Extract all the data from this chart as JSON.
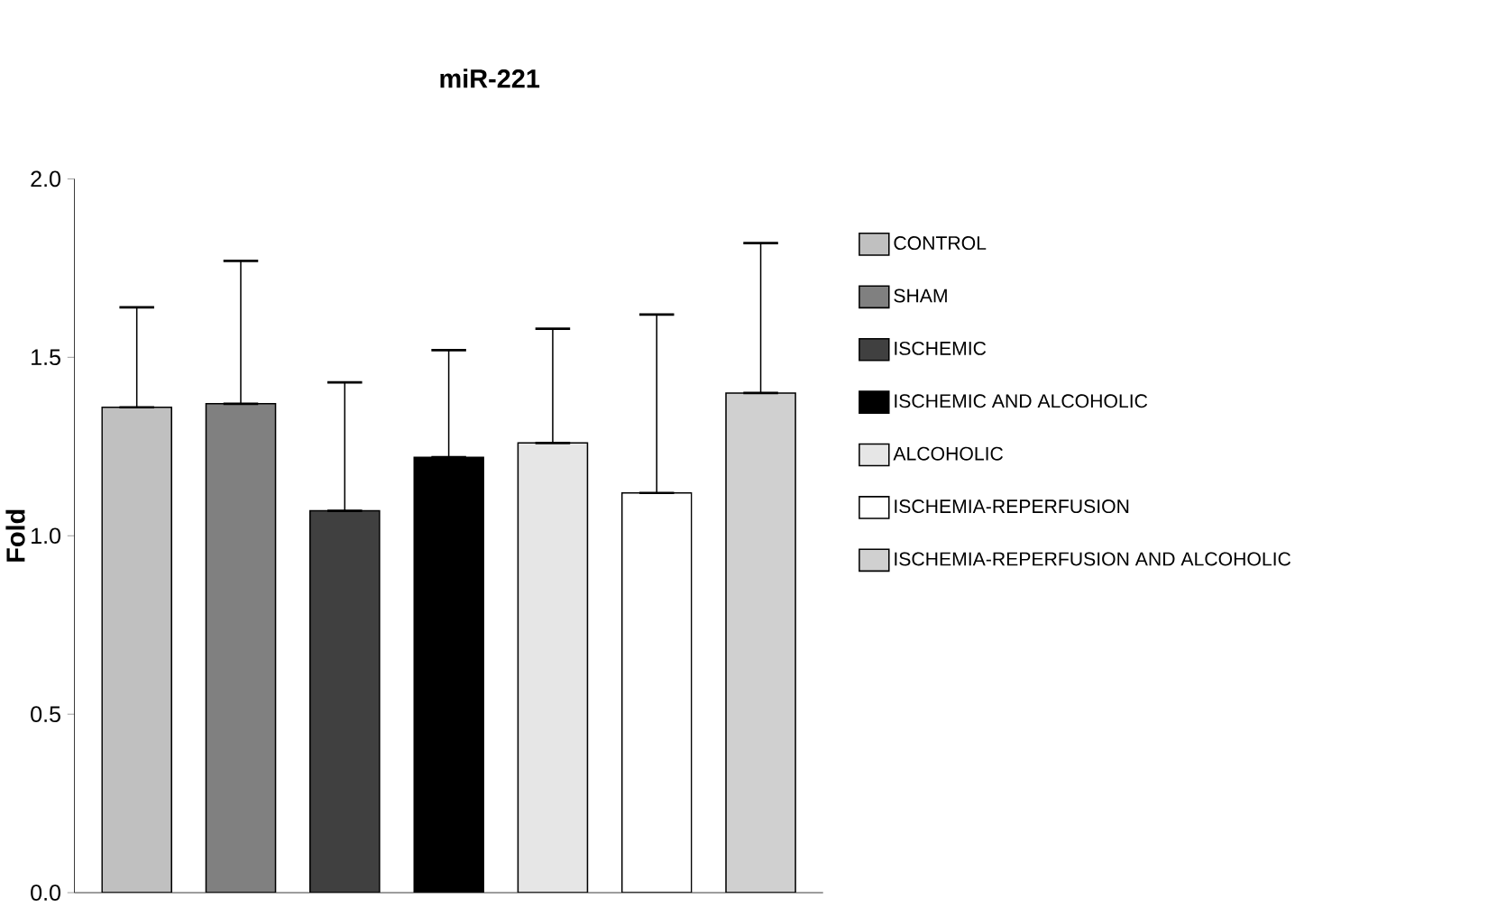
{
  "chart_data": {
    "type": "bar",
    "title": "miR-221",
    "ylabel": "Fold",
    "categories": [
      null,
      null,
      null,
      null,
      null,
      null,
      null
    ],
    "series": [
      {
        "name": "CONTROL",
        "color": "#c0c0c0",
        "values": [
          1.36,
          null,
          null,
          null,
          null,
          null,
          null
        ],
        "errors": [
          [
            1.36,
            1.64
          ],
          null,
          null,
          null,
          null,
          null,
          null
        ]
      },
      {
        "name": "SHAM",
        "color": "#808080",
        "values": [
          null,
          1.37,
          null,
          null,
          null,
          null,
          null
        ],
        "errors": [
          null,
          [
            1.37,
            1.77
          ],
          null,
          null,
          null,
          null,
          null
        ]
      },
      {
        "name": "ISCHEMIC",
        "color": "#404040",
        "values": [
          null,
          null,
          1.07,
          null,
          null,
          null,
          null
        ],
        "errors": [
          null,
          null,
          [
            1.07,
            1.43
          ],
          null,
          null,
          null,
          null
        ]
      },
      {
        "name": "ISCHEMIC AND ALCOHOLIC",
        "color": "#000000",
        "values": [
          null,
          null,
          null,
          1.22,
          null,
          null,
          null
        ],
        "errors": [
          null,
          null,
          null,
          [
            1.22,
            1.52
          ],
          null,
          null,
          null
        ]
      },
      {
        "name": "ALCOHOLIC",
        "color": "#e6e6e6",
        "values": [
          null,
          null,
          null,
          null,
          1.26,
          null,
          null
        ],
        "errors": [
          null,
          null,
          null,
          null,
          [
            1.26,
            1.58
          ],
          null,
          null
        ]
      },
      {
        "name": "ISCHEMIA-REPERFUSION",
        "color": "#ffffff",
        "values": [
          null,
          null,
          null,
          null,
          null,
          1.12,
          null
        ],
        "errors": [
          null,
          null,
          null,
          null,
          null,
          [
            1.12,
            1.62
          ],
          null
        ]
      },
      {
        "name": "ISCHEMIA-REPERFUSION AND ALCOHOLIC",
        "color": "#d0d0d0",
        "values": [
          null,
          null,
          null,
          null,
          null,
          null,
          1.4
        ],
        "errors": [
          null,
          null,
          null,
          null,
          null,
          null,
          [
            1.4,
            1.82
          ]
        ]
      }
    ],
    "ylim": [
      0,
      2
    ],
    "yticks": [
      {
        "value": 0,
        "label": "0.0"
      },
      {
        "value": 0.5,
        "label": "0.5"
      },
      {
        "value": 1,
        "label": "1.0"
      },
      {
        "value": 1.5,
        "label": "1.5"
      },
      {
        "value": 2,
        "label": "2.0"
      }
    ],
    "tick_labels": "y",
    "grid": false,
    "legend": "right"
  }
}
